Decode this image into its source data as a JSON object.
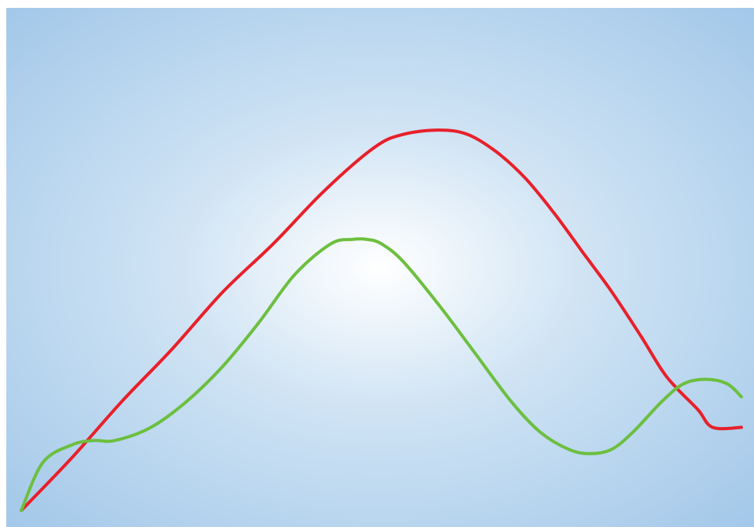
{
  "colors": {
    "background_center": "#ffffff",
    "background_mid": "#cfe3f4",
    "background_edge": "#a3c8e9",
    "series_red": "#e8202a",
    "series_green": "#6cbf3f"
  },
  "chart_data": {
    "type": "line",
    "title": "",
    "xlabel": "",
    "ylabel": "",
    "grid": false,
    "legend": "none",
    "xlim": [
      0,
      100
    ],
    "ylim": [
      0,
      100
    ],
    "series": [
      {
        "color_key": "series_red",
        "x": [
          0,
          7,
          14,
          21,
          28,
          35,
          42,
          49,
          53,
          58,
          62,
          66,
          70,
          74,
          78,
          82,
          86,
          89,
          91,
          94,
          96,
          100
        ],
        "y": [
          0,
          12,
          25,
          37,
          50,
          61,
          73,
          83,
          86,
          87,
          86,
          82,
          76,
          68,
          59,
          50,
          40,
          32,
          28,
          23,
          19,
          19
        ]
      },
      {
        "color_key": "series_green",
        "x": [
          0,
          3,
          7,
          10,
          13,
          18,
          23,
          28,
          33,
          38,
          43,
          46,
          48,
          50,
          53,
          58,
          63,
          68,
          72,
          76,
          79,
          82,
          85,
          89,
          92,
          95,
          98,
          100
        ],
        "y": [
          0,
          11,
          15,
          16,
          16,
          19,
          25,
          33,
          43,
          54,
          61,
          62,
          62,
          61,
          57,
          47,
          36,
          25,
          18,
          14,
          13,
          14,
          18,
          25,
          29,
          30,
          29,
          26
        ]
      }
    ]
  }
}
